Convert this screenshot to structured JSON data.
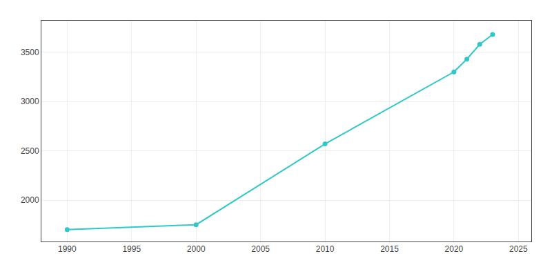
{
  "chart_data": {
    "type": "line",
    "x": [
      1990,
      2000,
      2010,
      2020,
      2021,
      2022,
      2023
    ],
    "values": [
      1700,
      1750,
      2570,
      3300,
      3430,
      3580,
      3680
    ],
    "color": "#2ec8c8",
    "marker": "circle",
    "xlim": [
      1988,
      2026
    ],
    "ylim": [
      1580,
      3820
    ],
    "xticks": [
      1990,
      1995,
      2000,
      2005,
      2010,
      2015,
      2020,
      2025
    ],
    "yticks": [
      2000,
      2500,
      3000,
      3500
    ],
    "grid": true
  }
}
